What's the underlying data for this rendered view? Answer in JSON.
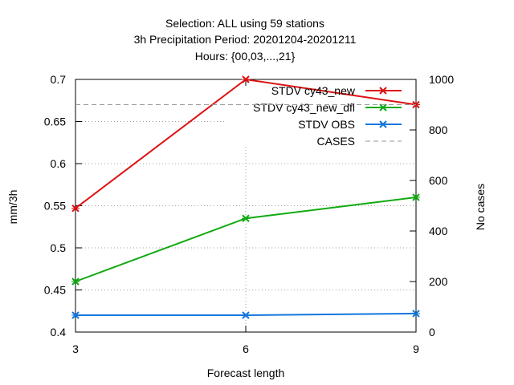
{
  "chart_data": {
    "type": "line",
    "title_lines": [
      "Selection: ALL using    59 stations",
      "3h Precipitation    Period: 20201204-20201211",
      "Hours: {00,03,...,21}"
    ],
    "xlabel": "Forecast length",
    "ylabel": "mm/3h",
    "y2label": "No cases",
    "x": [
      3,
      6,
      9
    ],
    "xticks": [
      "3",
      "6",
      "9"
    ],
    "xlim": [
      3,
      9
    ],
    "ylim": [
      0.4,
      0.7
    ],
    "yticks": [
      "0.4",
      "0.45",
      "0.5",
      "0.55",
      "0.6",
      "0.65",
      "0.7"
    ],
    "y2lim": [
      0,
      1000
    ],
    "y2ticks": [
      "0",
      "200",
      "400",
      "600",
      "800",
      "1000"
    ],
    "grid": true,
    "legend_position": "top-right",
    "series": [
      {
        "name": "STDV cy43_new",
        "axis": "left",
        "color": "#dd1111",
        "marker": "x",
        "values": [
          0.547,
          0.7,
          0.67
        ]
      },
      {
        "name": "STDV cy43_new_dfl",
        "axis": "left",
        "color": "#11aa11",
        "marker": "x",
        "values": [
          0.46,
          0.535,
          0.56
        ]
      },
      {
        "name": "STDV OBS",
        "axis": "left",
        "color": "#1177dd",
        "marker": "x",
        "values": [
          0.42,
          0.42,
          0.422
        ]
      },
      {
        "name": "CASES",
        "axis": "right",
        "color": "#999999",
        "dashed": true,
        "values": [
          900,
          900,
          900
        ]
      }
    ]
  }
}
